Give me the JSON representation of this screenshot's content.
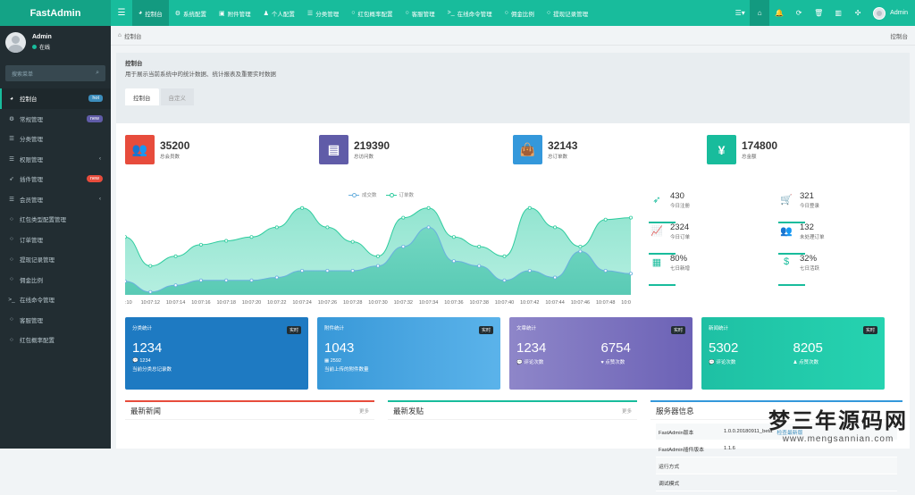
{
  "app": {
    "logo": "FastAdmin"
  },
  "topnav": [
    {
      "label": "控制台",
      "icon": "dashboard-icon",
      "glyph": "◕"
    },
    {
      "label": "系统配置",
      "icon": "cogs-icon",
      "glyph": "⚙"
    },
    {
      "label": "附件管理",
      "icon": "file-icon",
      "glyph": "▣"
    },
    {
      "label": "个人配置",
      "icon": "user-icon",
      "glyph": "♟"
    },
    {
      "label": "分类管理",
      "icon": "list-icon",
      "glyph": "☰"
    },
    {
      "label": "红包概率配置",
      "icon": "circle-icon",
      "glyph": "○"
    },
    {
      "label": "客服管理",
      "icon": "circle-icon",
      "glyph": "○"
    },
    {
      "label": "在线命令管理",
      "icon": "terminal-icon",
      "glyph": ">_"
    },
    {
      "label": "佣金比例",
      "icon": "circle-icon",
      "glyph": "○"
    },
    {
      "label": "提现记录管理",
      "icon": "circle-icon",
      "glyph": "○"
    }
  ],
  "user": {
    "name": "Admin",
    "status": "在线"
  },
  "search": {
    "placeholder": "搜索菜单"
  },
  "sidebar": [
    {
      "label": "控制台",
      "icon": "dashboard-icon",
      "glyph": "◕",
      "badge": "hot"
    },
    {
      "label": "常规管理",
      "icon": "cogs-icon",
      "glyph": "⚙",
      "badge": "new"
    },
    {
      "label": "分类管理",
      "icon": "list-icon",
      "glyph": "☰"
    },
    {
      "label": "权限管理",
      "icon": "group-icon",
      "glyph": "☰",
      "arrow": "‹"
    },
    {
      "label": "插件管理",
      "icon": "rocket-icon",
      "glyph": "➶",
      "badge": "new"
    },
    {
      "label": "会员管理",
      "icon": "list-icon",
      "glyph": "☰",
      "arrow": "‹"
    },
    {
      "label": "红包类型配置管理",
      "icon": "circle-icon",
      "glyph": "○"
    },
    {
      "label": "订单管理",
      "icon": "circle-icon",
      "glyph": "○"
    },
    {
      "label": "提现记录管理",
      "icon": "circle-icon",
      "glyph": "○"
    },
    {
      "label": "佣金比例",
      "icon": "circle-icon",
      "glyph": "○"
    },
    {
      "label": "在线命令管理",
      "icon": "terminal-icon",
      "glyph": ">_"
    },
    {
      "label": "客服管理",
      "icon": "circle-icon",
      "glyph": "○"
    },
    {
      "label": "红包概率配置",
      "icon": "circle-icon",
      "glyph": "○"
    }
  ],
  "breadcrumb": {
    "left": "控制台",
    "right": "控制台"
  },
  "panel": {
    "title": "控制台",
    "desc": "用于展示当前系统中的统计数据、统计报表及重要实时数据",
    "tabs": [
      "控制台",
      "自定义"
    ]
  },
  "stats": [
    {
      "value": "35200",
      "label": "总会员数",
      "color": "#e74c3c",
      "icon": "users-icon",
      "glyph": "👥"
    },
    {
      "value": "219390",
      "label": "总访问数",
      "color": "#605ca8",
      "icon": "book-icon",
      "glyph": "▤"
    },
    {
      "value": "32143",
      "label": "总订单数",
      "color": "#3498db",
      "icon": "shopping-bag-icon",
      "glyph": "👜"
    },
    {
      "value": "174800",
      "label": "总金额",
      "color": "#18bc9c",
      "icon": "cny-icon",
      "glyph": "¥"
    }
  ],
  "chart_data": {
    "type": "area",
    "legend": [
      "成交数",
      "订单数"
    ],
    "x": [
      ":10",
      "10:07:12",
      "10:07:14",
      "10:07:16",
      "10:07:18",
      "10:07:20",
      "10:07:22",
      "10:07:24",
      "10:07:26",
      "10:07:28",
      "10:07:30",
      "10:07:32",
      "10:07:34",
      "10:07:36",
      "10:07:38",
      "10:07:40",
      "10:07:42",
      "10:07:44",
      "10:07:46",
      "10:07:48",
      "10:0"
    ],
    "xticks": [
      ":10",
      "10:07:12",
      "10:07:14",
      "10:07:16",
      "10:07:18",
      "10:07:20",
      "10:07:22",
      "10:07:24",
      "10:07:26",
      "10:07:28",
      "10:07:30",
      "10:07:32",
      "10:07:34",
      "10:07:36",
      "10:07:38",
      "10:07:40",
      "10:07:42",
      "10:07:44",
      "10:07:46",
      "10:07:48",
      "10:0"
    ],
    "series": [
      {
        "name": "成交数",
        "values": [
          140,
          30,
          100,
          150,
          150,
          150,
          180,
          250,
          250,
          250,
          300,
          500,
          700,
          350,
          300,
          150,
          250,
          180,
          450,
          250,
          220
        ]
      },
      {
        "name": "订单数",
        "values": [
          600,
          300,
          400,
          520,
          560,
          600,
          700,
          900,
          700,
          550,
          400,
          800,
          900,
          600,
          500,
          400,
          900,
          700,
          500,
          780,
          800
        ]
      }
    ],
    "ylim": [
      0,
      1000
    ]
  },
  "sidestats": [
    {
      "value": "430",
      "label": "今日注册",
      "icon": "rocket-icon",
      "glyph": "➶"
    },
    {
      "value": "321",
      "label": "今日登录",
      "icon": "cart-icon",
      "glyph": "🛒"
    },
    {
      "value": "2324",
      "label": "今日订单",
      "icon": "area-chart-icon",
      "glyph": "📈"
    },
    {
      "value": "132",
      "label": "未处理订单",
      "icon": "users-icon",
      "glyph": "👥"
    },
    {
      "value": "80%",
      "label": "七日新增",
      "icon": "calendar-icon",
      "glyph": "▦"
    },
    {
      "value": "32%",
      "label": "七日活跃",
      "icon": "dollar-icon",
      "glyph": "$"
    }
  ],
  "cards": [
    {
      "title": "分类统计",
      "tag": "实时",
      "value": "1234",
      "sub": "💬 1234",
      "sub2": "当前分类总记录数"
    },
    {
      "title": "附件统计",
      "tag": "实时",
      "value": "1043",
      "sub": "▦ 2592",
      "sub2": "当前上传的附件数量"
    },
    {
      "title": "文章统计",
      "tag": "实时",
      "v1": "1234",
      "v2": "6754",
      "l1": "💬 评论次数",
      "l2": "♥ 点赞次数"
    },
    {
      "title": "新闻统计",
      "tag": "实时",
      "v1": "5302",
      "v2": "8205",
      "l1": "💬 评论次数",
      "l2": "♟ 点赞次数"
    }
  ],
  "bottom": {
    "news": "最新新闻",
    "posts": "最新发贴",
    "server": "服务器信息",
    "more": "更多"
  },
  "server_info": [
    {
      "k": "FastAdmin版本",
      "v": "1.0.0.20180911_beta",
      "link": "检查最新版"
    },
    {
      "k": "FastAdmin插件版本",
      "v": "1.1.6"
    },
    {
      "k": "运行方式",
      "v": ""
    },
    {
      "k": "调试模式",
      "v": ""
    }
  ],
  "watermark": {
    "line1": "梦三年源码网",
    "line2": "www.mengsannian.com"
  }
}
